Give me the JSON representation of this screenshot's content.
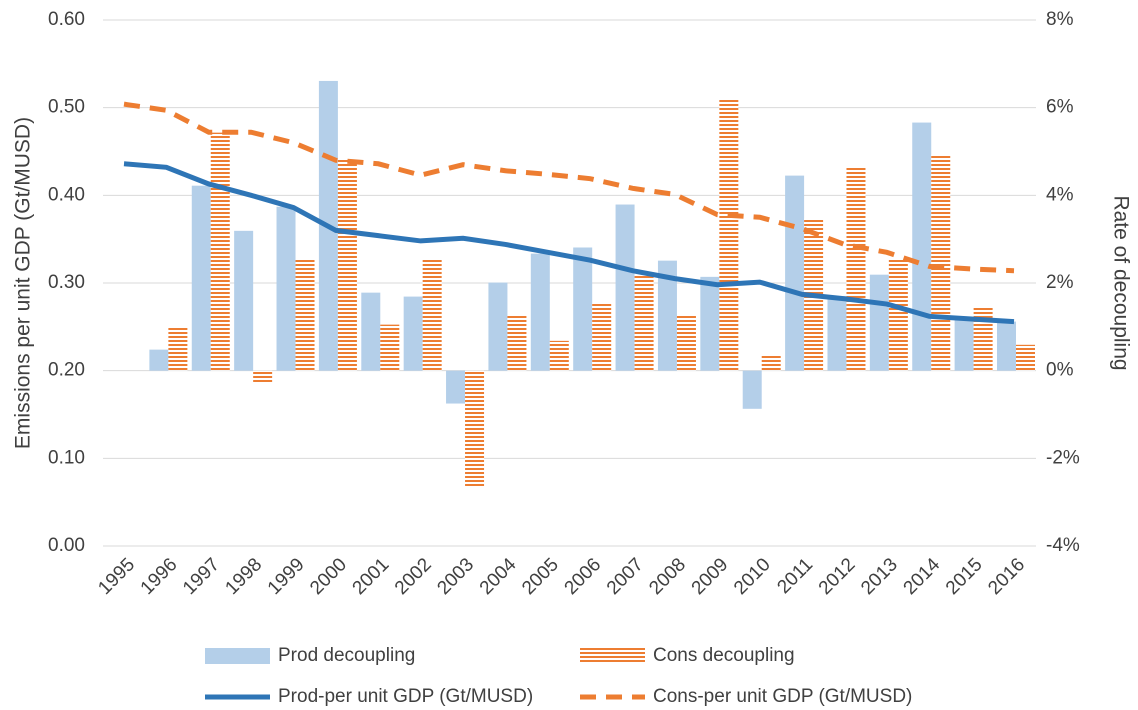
{
  "chart_data": {
    "type": "combo",
    "y_label": "Emissions per unit GDP (Gt/MUSD)",
    "y2_label": "Rate of decoupling",
    "categories": [
      "1995",
      "1996",
      "1997",
      "1998",
      "1999",
      "2000",
      "2001",
      "2002",
      "2003",
      "2004",
      "2005",
      "2006",
      "2007",
      "2008",
      "2009",
      "2010",
      "2011",
      "2012",
      "2013",
      "2014",
      "2015",
      "2016"
    ],
    "ylim": [
      0,
      0.6
    ],
    "yticks": [
      {
        "value": 0,
        "label": "0.00"
      },
      {
        "value": 0.1,
        "label": "0.10"
      },
      {
        "value": 0.2,
        "label": "0.20"
      },
      {
        "value": 0.3,
        "label": "0.30"
      },
      {
        "value": 0.4,
        "label": "0.40"
      },
      {
        "value": 0.5,
        "label": "0.50"
      },
      {
        "value": 0.6,
        "label": "0.60"
      }
    ],
    "y2lim": [
      -4,
      8
    ],
    "y2ticks": [
      {
        "value": -4,
        "label": "-4%"
      },
      {
        "value": -2,
        "label": "-2%"
      },
      {
        "value": 0,
        "label": "0%"
      },
      {
        "value": 2,
        "label": "2%"
      },
      {
        "value": 4,
        "label": "4%"
      },
      {
        "value": 6,
        "label": "6%"
      },
      {
        "value": 8,
        "label": "8%"
      }
    ],
    "grid": true,
    "series": [
      {
        "name": "Prod decoupling",
        "type": "bar",
        "axis": "y2",
        "color": "#b4cfe9",
        "pattern": "solid",
        "values": [
          null,
          0.48,
          4.22,
          3.19,
          3.74,
          6.61,
          1.78,
          1.69,
          -0.75,
          2.01,
          2.67,
          2.81,
          3.79,
          2.51,
          2.14,
          -0.87,
          4.45,
          1.7,
          2.19,
          5.66,
          1.16,
          1.12
        ]
      },
      {
        "name": "Cons decoupling",
        "type": "bar",
        "axis": "y2",
        "color": "#ed7d31",
        "pattern": "horizontal-lines",
        "values": [
          null,
          1.0,
          5.43,
          -0.3,
          2.55,
          4.83,
          1.05,
          2.53,
          -2.65,
          1.25,
          0.68,
          1.53,
          2.19,
          1.25,
          6.18,
          0.34,
          3.47,
          4.65,
          2.55,
          4.93,
          1.44,
          0.59
        ]
      },
      {
        "name": "Prod-per unit GDP (Gt/MUSD)",
        "type": "line",
        "color": "#2e75b6",
        "dash": "solid",
        "values": [
          0.436,
          0.432,
          0.413,
          0.4,
          0.386,
          0.36,
          0.354,
          0.348,
          0.351,
          0.344,
          0.335,
          0.326,
          0.314,
          0.305,
          0.298,
          0.301,
          0.287,
          0.282,
          0.276,
          0.262,
          0.259,
          0.256
        ]
      },
      {
        "name": "Cons-per unit GDP (Gt/MUSD)",
        "type": "line",
        "color": "#ed7d31",
        "dash": "dashed",
        "values": [
          0.504,
          0.497,
          0.472,
          0.472,
          0.46,
          0.44,
          0.436,
          0.423,
          0.435,
          0.428,
          0.424,
          0.419,
          0.408,
          0.401,
          0.378,
          0.375,
          0.362,
          0.344,
          0.335,
          0.319,
          0.316,
          0.314
        ]
      }
    ]
  }
}
